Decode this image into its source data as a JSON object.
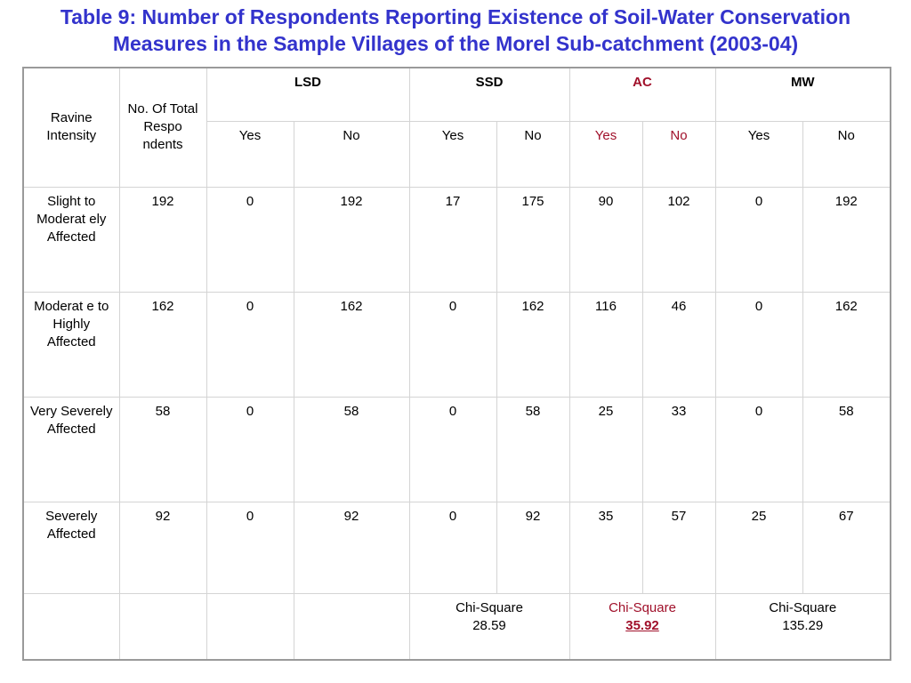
{
  "title": {
    "line1": "Table 9: Number of Respondents Reporting Existence of Soil-Water Conservation",
    "line2": "Measures in the Sample Villages of the Morel Sub-catchment (2003-04)"
  },
  "header": {
    "ravine": "Ravine Intensity",
    "total": "No. Of Total Respo ndents",
    "groups": [
      "LSD",
      "SSD",
      "AC",
      "MW"
    ],
    "yes": "Yes",
    "no": "No"
  },
  "rows": [
    {
      "label": "Slight to Moderat ely Affected",
      "total": "192",
      "lsd_yes": "0",
      "lsd_no": "192",
      "ssd_yes": "17",
      "ssd_no": "175",
      "ac_yes": "90",
      "ac_no": "102",
      "mw_yes": "0",
      "mw_no": "192"
    },
    {
      "label": "Moderat e to Highly Affected",
      "total": "162",
      "lsd_yes": "0",
      "lsd_no": "162",
      "ssd_yes": "0",
      "ssd_no": "162",
      "ac_yes": "116",
      "ac_no": "46",
      "mw_yes": "0",
      "mw_no": "162"
    },
    {
      "label": "Very Severely Affected",
      "total": "58",
      "lsd_yes": "0",
      "lsd_no": "58",
      "ssd_yes": "0",
      "ssd_no": "58",
      "ac_yes": "25",
      "ac_no": "33",
      "mw_yes": "0",
      "mw_no": "58"
    },
    {
      "label": "Severely Affected",
      "total": "92",
      "lsd_yes": "0",
      "lsd_no": "92",
      "ssd_yes": "0",
      "ssd_no": "92",
      "ac_yes": "35",
      "ac_no": "57",
      "mw_yes": "25",
      "mw_no": "67"
    }
  ],
  "chi_square": {
    "label": "Chi-Square",
    "ssd": "28.59",
    "ac": "35.92",
    "mw": "135.29"
  },
  "colors": {
    "title": "#3333cc",
    "ac_accent": "#a0102a"
  }
}
